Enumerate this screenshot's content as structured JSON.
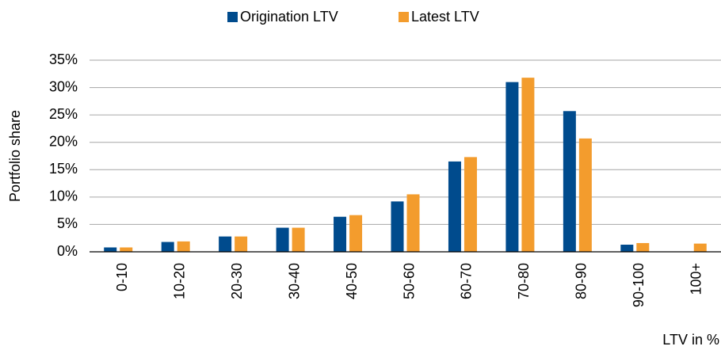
{
  "chart_data": {
    "type": "bar",
    "x_label": "LTV in %",
    "y_label": "Portfolio share",
    "categories": [
      "0-10",
      "10-20",
      "20-30",
      "30-40",
      "40-50",
      "50-60",
      "60-70",
      "70-80",
      "80-90",
      "90-100",
      "100+"
    ],
    "series": [
      {
        "name": "Origination LTV",
        "color": "#004b8d",
        "values": [
          0.8,
          1.8,
          2.8,
          4.4,
          6.4,
          9.2,
          16.5,
          31.0,
          25.7,
          1.3,
          0
        ]
      },
      {
        "name": "Latest LTV",
        "color": "#f39c2d",
        "values": [
          0.8,
          1.9,
          2.8,
          4.4,
          6.7,
          10.5,
          17.3,
          31.8,
          20.7,
          1.6,
          1.5
        ]
      }
    ],
    "ylim": [
      0,
      35
    ],
    "yticks": [
      {
        "value": 0,
        "label": "0%"
      },
      {
        "value": 5,
        "label": "5%"
      },
      {
        "value": 10,
        "label": "10%"
      },
      {
        "value": 15,
        "label": "15%"
      },
      {
        "value": 20,
        "label": "20%"
      },
      {
        "value": 25,
        "label": "25%"
      },
      {
        "value": 30,
        "label": "30%"
      },
      {
        "value": 35,
        "label": "35%"
      }
    ],
    "grid": true,
    "legend": "top"
  }
}
